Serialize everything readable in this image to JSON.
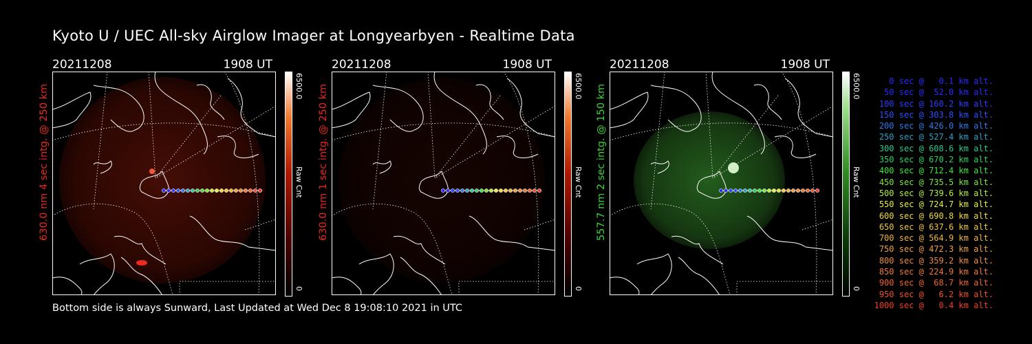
{
  "title": "Kyoto U / UEC All-sky Airglow Imager at Longyearbyen - Realtime Data",
  "footer": "Bottom side is always Sunward, Last Updated at Wed Dec  8 19:08:10 2021 in UTC",
  "colors": {
    "red": "#e8291c",
    "green": "#3fd23a"
  },
  "panels": [
    {
      "date": "20211208",
      "time": "1908 UT",
      "ylabel": "630.0 nm 4 sec intg. @ 250 km",
      "cbar_max": "6500.0",
      "cbar_min": "0",
      "cbar_unit": "Raw Cnt",
      "color": "red",
      "brightness": 0.55
    },
    {
      "date": "20211208",
      "time": "1908 UT",
      "ylabel": "630.0 nm 1 sec intg. @ 250 km",
      "cbar_max": "6500.0",
      "cbar_min": "0",
      "cbar_unit": "Raw Cnt",
      "color": "red",
      "brightness": 0.18
    },
    {
      "date": "20211208",
      "time": "1908 UT",
      "ylabel": "557.7 nm 2 sec intg. @ 150 km",
      "cbar_max": "6500.0",
      "cbar_min": "0",
      "cbar_unit": "Raw Cnt",
      "color": "green",
      "brightness": 0.6
    }
  ],
  "legend": [
    {
      "text": "0 sec @   0.1 km alt.",
      "color": "#2a2aff"
    },
    {
      "text": "50 sec @  52.0 km alt.",
      "color": "#2a2aff"
    },
    {
      "text": "100 sec @ 160.2 km alt.",
      "color": "#2a3cff"
    },
    {
      "text": "150 sec @ 303.8 km alt.",
      "color": "#2a50ff"
    },
    {
      "text": "200 sec @ 426.0 km alt.",
      "color": "#2a7ae8"
    },
    {
      "text": "250 sec @ 527.4 km alt.",
      "color": "#2aa0c8"
    },
    {
      "text": "300 sec @ 608.6 km alt.",
      "color": "#2ac896"
    },
    {
      "text": "350 sec @ 670.2 km alt.",
      "color": "#2ad264"
    },
    {
      "text": "400 sec @ 712.4 km alt.",
      "color": "#3ce63c"
    },
    {
      "text": "450 sec @ 735.5 km alt.",
      "color": "#7ce63c"
    },
    {
      "text": "500 sec @ 739.6 km alt.",
      "color": "#b4f03c"
    },
    {
      "text": "550 sec @ 724.7 km alt.",
      "color": "#e6f03c"
    },
    {
      "text": "600 sec @ 690.8 km alt.",
      "color": "#f0dc3c"
    },
    {
      "text": "650 sec @ 637.6 km alt.",
      "color": "#f0c83c"
    },
    {
      "text": "700 sec @ 564.9 km alt.",
      "color": "#f0b43c"
    },
    {
      "text": "750 sec @ 472.3 km alt.",
      "color": "#f0a03c"
    },
    {
      "text": "800 sec @ 359.2 km alt.",
      "color": "#f08c3c"
    },
    {
      "text": "850 sec @ 224.9 km alt.",
      "color": "#f07832"
    },
    {
      "text": "900 sec @  68.7 km alt.",
      "color": "#f06428"
    },
    {
      "text": "950 sec @   6.2 km alt.",
      "color": "#f05028"
    },
    {
      "text": "1000 sec @   0.4 km alt.",
      "color": "#f03c28"
    }
  ]
}
